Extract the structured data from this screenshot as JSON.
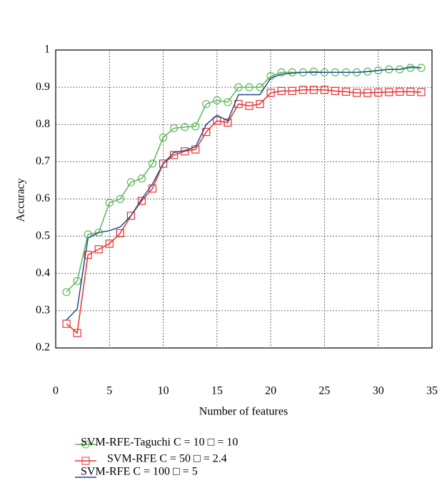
{
  "chart_data": {
    "type": "line",
    "x_label": "Number of features",
    "y_label": "Accuracy",
    "x": [
      1,
      2,
      3,
      4,
      5,
      6,
      7,
      8,
      9,
      10,
      11,
      12,
      13,
      14,
      15,
      16,
      17,
      18,
      19,
      20,
      21,
      22,
      23,
      24,
      25,
      26,
      27,
      28,
      29,
      30,
      31,
      32,
      33,
      34
    ],
    "series": [
      {
        "name": "SVM-RFE-Taguchi C = 10 □ = 10",
        "color": "#5cb85c",
        "marker": "circle",
        "values": [
          0.35,
          0.38,
          0.505,
          0.51,
          0.59,
          0.6,
          0.645,
          0.655,
          0.695,
          0.765,
          0.79,
          0.793,
          0.795,
          0.855,
          0.865,
          0.86,
          0.9,
          0.9,
          0.9,
          0.93,
          0.94,
          0.94,
          0.94,
          0.942,
          0.94,
          0.94,
          0.94,
          0.94,
          0.942,
          0.945,
          0.948,
          0.948,
          0.952,
          0.952
        ]
      },
      {
        "name": "SVM-RFE C = 50 □ = 2.4",
        "color": "#e8312f",
        "marker": "square",
        "values": [
          0.265,
          0.24,
          0.45,
          0.465,
          0.48,
          0.508,
          0.555,
          0.595,
          0.628,
          0.695,
          0.718,
          0.728,
          0.733,
          0.78,
          0.81,
          0.805,
          0.855,
          0.85,
          0.855,
          0.885,
          0.89,
          0.89,
          0.893,
          0.893,
          0.893,
          0.89,
          0.888,
          0.885,
          0.885,
          0.886,
          0.887,
          0.888,
          0.888,
          0.887
        ]
      },
      {
        "name": "SVM-RFE C = 100 □ = 5",
        "color": "#1f4e8c",
        "marker": "none",
        "values": [
          0.275,
          0.305,
          0.495,
          0.51,
          0.515,
          0.525,
          0.555,
          0.6,
          0.64,
          0.695,
          0.725,
          0.73,
          0.74,
          0.8,
          0.825,
          0.81,
          0.88,
          0.88,
          0.88,
          0.925,
          0.935,
          0.938,
          0.94,
          0.94,
          0.94,
          0.94,
          0.94,
          0.94,
          0.942,
          0.945,
          0.948,
          0.948,
          0.955,
          0.952
        ]
      }
    ],
    "xlim": [
      0,
      35
    ],
    "xticks": [
      0,
      5,
      10,
      15,
      20,
      25,
      30,
      35
    ],
    "ylim": [
      0.2,
      1
    ],
    "yticks": [
      0.2,
      0.3,
      0.4,
      0.5,
      0.6,
      0.7,
      0.8,
      0.9,
      1
    ],
    "grid": true
  }
}
